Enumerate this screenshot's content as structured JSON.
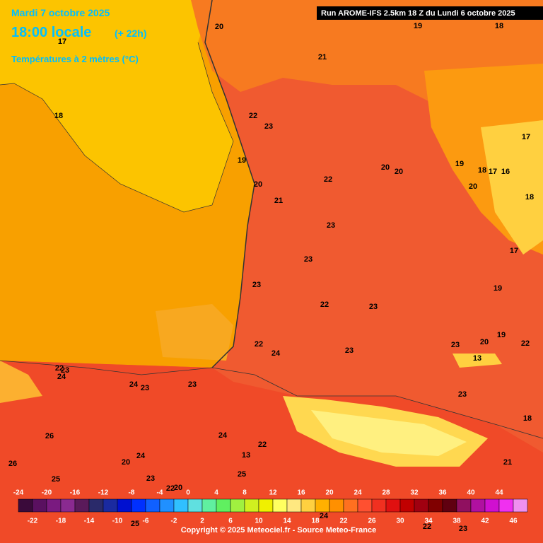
{
  "header": {
    "date": "Mardi 7 octobre 2025",
    "time": "18:00 locale",
    "offset": "(+ 22h)",
    "parameter": "Températures à 2 mètres (°C)",
    "run": "Run AROME-IFS 2.5km 18 Z du Lundi 6 octobre 2025"
  },
  "map_labels": [
    20,
    19,
    18,
    17,
    21,
    18,
    22,
    23,
    17,
    19,
    20,
    20,
    19,
    18,
    17,
    16,
    22,
    20,
    20,
    21,
    18,
    23,
    17,
    23,
    23,
    19,
    22,
    23,
    23,
    20,
    19,
    22,
    22,
    24,
    23,
    13,
    22,
    23,
    24,
    24,
    23,
    23,
    23,
    18,
    26,
    24,
    22,
    13,
    20,
    24,
    26,
    21,
    25,
    25,
    23,
    20,
    22,
    24,
    25,
    22,
    23
  ],
  "legend": {
    "top_labels": [
      -24,
      -20,
      -16,
      -12,
      -8,
      -4,
      0,
      4,
      8,
      12,
      16,
      20,
      24,
      28,
      32,
      36,
      40,
      44
    ],
    "bottom_labels": [
      -22,
      -18,
      -14,
      -10,
      -6,
      -2,
      2,
      6,
      10,
      14,
      18,
      22,
      26,
      30,
      34,
      38,
      42,
      46
    ],
    "colors": [
      "#3a0a3a",
      "#5a1060",
      "#7a1a80",
      "#8a2a90",
      "#5a1a5a",
      "#2a2a6a",
      "#1a2aa0",
      "#0010d0",
      "#0030ff",
      "#1060ff",
      "#2090ff",
      "#30c0ff",
      "#60e0e0",
      "#60f0a0",
      "#60f060",
      "#a0f040",
      "#d0f020",
      "#f0f000",
      "#ffff60",
      "#ffe880",
      "#ffd040",
      "#ffb000",
      "#ff9000",
      "#ff7020",
      "#ff5030",
      "#f03020",
      "#e01010",
      "#c00000",
      "#a00010",
      "#800000",
      "#600010",
      "#901060",
      "#b010a0",
      "#d010d0",
      "#f030f0",
      "#f090f0"
    ]
  },
  "footer": {
    "copyright": "Copyright © 2025 Meteociel.fr - Source Meteo-France"
  }
}
